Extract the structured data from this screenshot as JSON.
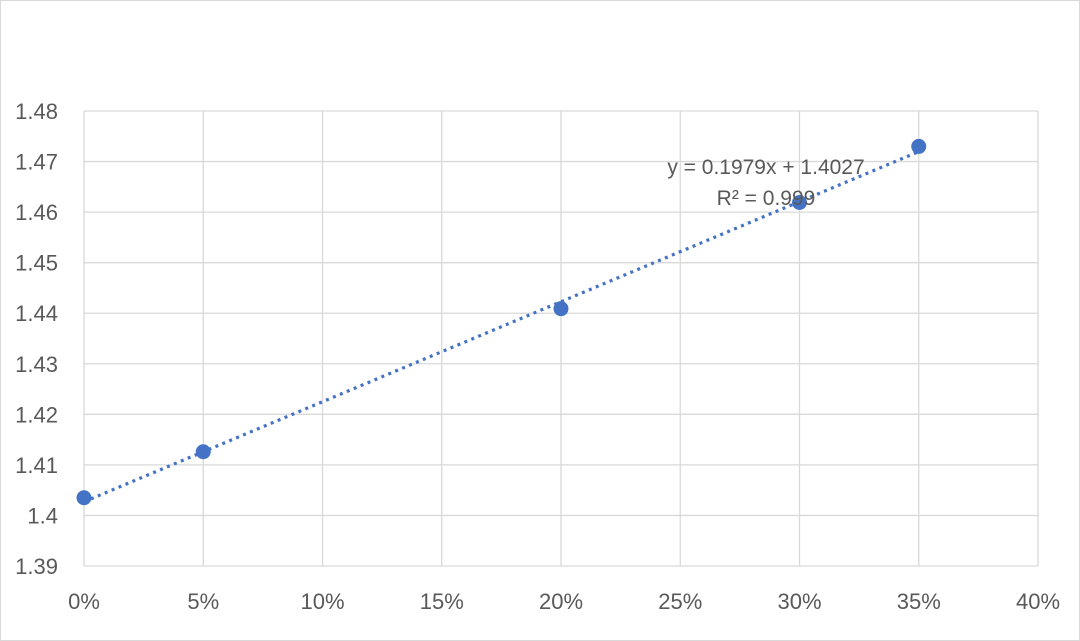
{
  "chart_data": {
    "type": "scatter",
    "title": "",
    "xlabel": "",
    "ylabel": "",
    "x_tick_labels": [
      "0%",
      "5%",
      "10%",
      "15%",
      "20%",
      "25%",
      "30%",
      "35%",
      "40%"
    ],
    "y_tick_labels": [
      "1.39",
      "1.4",
      "1.41",
      "1.42",
      "1.43",
      "1.44",
      "1.45",
      "1.46",
      "1.47",
      "1.48"
    ],
    "xlim": [
      0,
      0.4
    ],
    "ylim": [
      1.39,
      1.48
    ],
    "grid": true,
    "series": [
      {
        "points": [
          {
            "x": 0.0,
            "y": 1.4035
          },
          {
            "x": 0.05,
            "y": 1.4126
          },
          {
            "x": 0.2,
            "y": 1.4409
          },
          {
            "x": 0.3,
            "y": 1.4619
          },
          {
            "x": 0.35,
            "y": 1.473
          }
        ],
        "color": "#4472C4"
      }
    ],
    "trendline": {
      "type": "linear",
      "style": "dotted",
      "slope": 0.1979,
      "intercept": 1.4027,
      "x_range": [
        0,
        0.35
      ],
      "color": "#4472C4",
      "equation_label": "y = 0.1979x + 1.4027",
      "r2_label": "R² = 0.999"
    },
    "colors": {
      "grid": "#d9d9d9",
      "text": "#595959",
      "frame": "#d9d9d9"
    }
  }
}
